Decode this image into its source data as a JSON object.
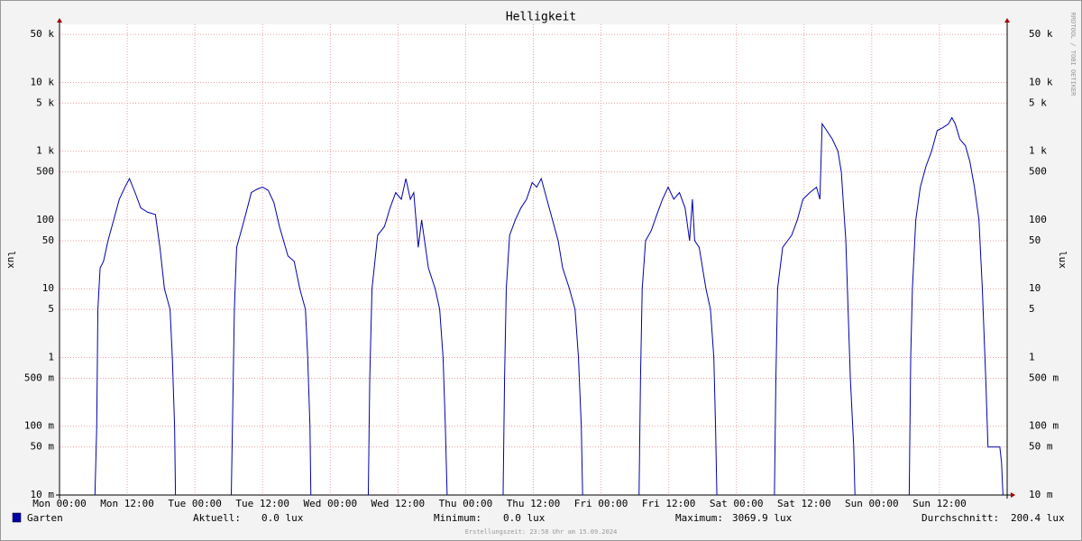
{
  "chart_data": {
    "type": "line",
    "title": "Helligkeit",
    "y_label": "lux",
    "watermark": "RRDTOOL / TOBI OETIKER",
    "footer": "Erstellungszeit: 23:58 Uhr am 15.09.2024",
    "log_scale": true,
    "grid": true,
    "xlim": [
      0,
      168
    ],
    "xticks": [
      {
        "value": 0,
        "label": "Mon 00:00"
      },
      {
        "value": 12,
        "label": "Mon 12:00"
      },
      {
        "value": 24,
        "label": "Tue 00:00"
      },
      {
        "value": 36,
        "label": "Tue 12:00"
      },
      {
        "value": 48,
        "label": "Wed 00:00"
      },
      {
        "value": 60,
        "label": "Wed 12:00"
      },
      {
        "value": 72,
        "label": "Thu 00:00"
      },
      {
        "value": 84,
        "label": "Thu 12:00"
      },
      {
        "value": 96,
        "label": "Fri 00:00"
      },
      {
        "value": 108,
        "label": "Fri 12:00"
      },
      {
        "value": 120,
        "label": "Sat 00:00"
      },
      {
        "value": 132,
        "label": "Sat 12:00"
      },
      {
        "value": 144,
        "label": "Sun 00:00"
      },
      {
        "value": 156,
        "label": "Sun 12:00"
      }
    ],
    "ylim": [
      0.01,
      70000
    ],
    "yticks": [
      {
        "value": 0.01,
        "label": "10 m"
      },
      {
        "value": 0.05,
        "label": "50 m"
      },
      {
        "value": 0.1,
        "label": "100 m"
      },
      {
        "value": 0.5,
        "label": "500 m"
      },
      1,
      5,
      10,
      50,
      100,
      500,
      {
        "value": 1000,
        "label": "1 k"
      },
      {
        "value": 5000,
        "label": "5 k"
      },
      {
        "value": 10000,
        "label": "10 k"
      },
      {
        "value": 50000,
        "label": "50 k"
      }
    ],
    "x": [
      0,
      6.2,
      6.6,
      6.8,
      7.2,
      7.8,
      8.6,
      9.6,
      10.6,
      11.6,
      12.4,
      13.4,
      14.4,
      15.6,
      17.0,
      17.8,
      18.6,
      19.6,
      20.0,
      20.4,
      20.6,
      30.4,
      30.8,
      31.0,
      31.4,
      32.0,
      33.0,
      34.0,
      35.0,
      36.0,
      37.0,
      38.0,
      39.0,
      40.5,
      41.6,
      42.6,
      43.6,
      44.0,
      44.4,
      44.6,
      54.7,
      55.0,
      55.4,
      56.4,
      57.6,
      58.6,
      59.6,
      60.6,
      61.4,
      62.2,
      62.8,
      63.6,
      64.2,
      65.4,
      66.6,
      67.4,
      68.0,
      68.4,
      68.8,
      78.6,
      78.9,
      79.2,
      79.8,
      80.8,
      81.8,
      82.8,
      83.8,
      84.6,
      85.4,
      86.4,
      87.4,
      88.4,
      89.2,
      90.4,
      91.4,
      92.0,
      92.5,
      92.8,
      102.7,
      103.0,
      103.3,
      103.9,
      104.9,
      105.9,
      106.9,
      107.9,
      108.9,
      109.9,
      110.9,
      111.7,
      112.2,
      112.6,
      113.4,
      114.6,
      115.4,
      116.0,
      116.3,
      116.6,
      126.7,
      127.0,
      127.3,
      128.2,
      129.8,
      130.8,
      131.8,
      133.0,
      134.2,
      134.8,
      135.2,
      136.0,
      137.0,
      138.0,
      138.6,
      139.4,
      139.8,
      140.2,
      140.8,
      141.1,
      150.6,
      150.9,
      151.2,
      151.8,
      152.6,
      153.6,
      154.6,
      155.6,
      156.6,
      157.6,
      158.2,
      158.8,
      159.6,
      160.6,
      161.4,
      162.2,
      163.0,
      163.6,
      164.2,
      164.6,
      166.7,
      167.0,
      167.4,
      168
    ],
    "series": [
      {
        "name": "Garten",
        "color": "#0000aa",
        "values": [
          0,
          0,
          0.1,
          5,
          20,
          25,
          50,
          100,
          200,
          300,
          400,
          250,
          150,
          130,
          120,
          40,
          10,
          5,
          1,
          0.1,
          0,
          0,
          0.5,
          5,
          40,
          60,
          120,
          250,
          280,
          300,
          270,
          180,
          80,
          30,
          25,
          10,
          5,
          1,
          0.1,
          0,
          0,
          0.5,
          10,
          60,
          80,
          150,
          250,
          200,
          400,
          200,
          250,
          40,
          100,
          20,
          10,
          5,
          1,
          0.1,
          0,
          0,
          0.5,
          10,
          60,
          100,
          150,
          200,
          350,
          300,
          400,
          200,
          100,
          50,
          20,
          10,
          5,
          1,
          0.1,
          0,
          0,
          0.5,
          10,
          50,
          70,
          120,
          200,
          300,
          200,
          250,
          150,
          50,
          200,
          50,
          40,
          10,
          5,
          1,
          0.1,
          0,
          0,
          0.5,
          10,
          40,
          60,
          100,
          200,
          250,
          300,
          200,
          2500,
          2000,
          1500,
          1000,
          500,
          50,
          5,
          0.5,
          0.05,
          0,
          0,
          1,
          10,
          100,
          300,
          600,
          1000,
          2000,
          2200,
          2500,
          3069.9,
          2500,
          1500,
          1200,
          700,
          300,
          100,
          10,
          0.5,
          0.05,
          0.05,
          0.03,
          0,
          0
        ]
      }
    ],
    "legend_stats": [
      {
        "label": "Aktuell:",
        "value": "0.0 lux"
      },
      {
        "label": "Minimum:",
        "value": "0.0 lux"
      },
      {
        "label": "Maximum:",
        "value": "3069.9 lux"
      },
      {
        "label": "Durchschnitt:",
        "value": "200.4 lux"
      }
    ]
  }
}
